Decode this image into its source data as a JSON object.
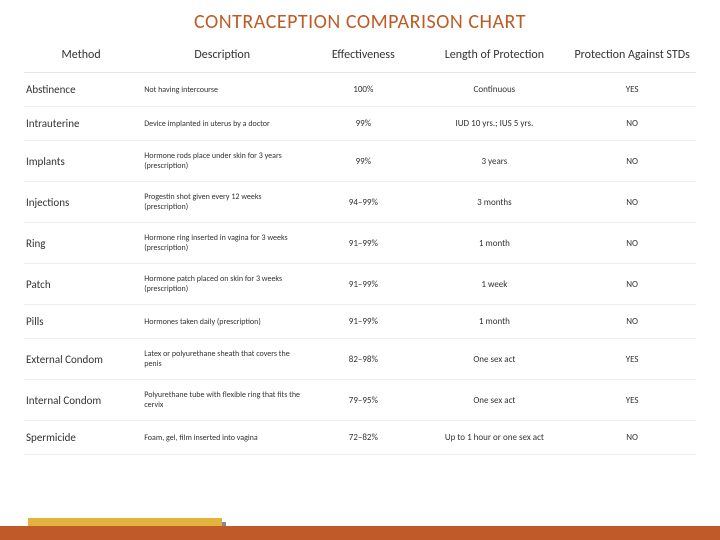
{
  "title": "CONTRACEPTION COMPARISON CHART",
  "colors": {
    "title": "#bd5b27",
    "footer_bar": "#c05a28",
    "footer_tab": "#e2b33d",
    "row_border": "#eeeeee",
    "text": "#333333",
    "background": "#ffffff"
  },
  "fonts": {
    "title_size_pt": 20,
    "header_size_pt": 12,
    "method_size_pt": 11,
    "cell_size_pt": 9,
    "desc_size_pt": 8
  },
  "columns": [
    {
      "label": "Method",
      "align": "left",
      "width_pct": 17
    },
    {
      "label": "Description",
      "align": "left",
      "width_pct": 25
    },
    {
      "label": "Effectiveness",
      "align": "center",
      "width_pct": 17
    },
    {
      "label": "Length of Protection",
      "align": "center",
      "width_pct": 22
    },
    {
      "label": "Protection Against STDs",
      "align": "center",
      "width_pct": 19
    }
  ],
  "rows": [
    {
      "method": "Abstinence",
      "desc": "Not having intercourse",
      "eff": "100%",
      "length": "Continuous",
      "std": "YES"
    },
    {
      "method": "Intrauterine",
      "desc": "Device implanted in uterus by a doctor",
      "eff": "99%",
      "length": "IUD 10 yrs.; IUS 5 yrs.",
      "std": "NO"
    },
    {
      "method": "Implants",
      "desc": "Hormone rods place under skin for 3 years (prescription)",
      "eff": "99%",
      "length": "3 years",
      "std": "NO"
    },
    {
      "method": "Injections",
      "desc": "Progestin shot given every 12 weeks (prescription)",
      "eff": "94–99%",
      "length": "3 months",
      "std": "NO"
    },
    {
      "method": "Ring",
      "desc": "Hormone ring inserted in vagina for 3 weeks (prescription)",
      "eff": "91–99%",
      "length": "1 month",
      "std": "NO"
    },
    {
      "method": "Patch",
      "desc": "Hormone patch placed on skin for 3 weeks (prescription)",
      "eff": "91–99%",
      "length": "1 week",
      "std": "NO"
    },
    {
      "method": "Pills",
      "desc": "Hormones taken daily (prescription)",
      "eff": "91–99%",
      "length": "1 month",
      "std": "NO"
    },
    {
      "method": "External Condom",
      "desc": "Latex or polyurethane sheath that covers the penis",
      "eff": "82–98%",
      "length": "One sex act",
      "std": "YES"
    },
    {
      "method": "Internal Condom",
      "desc": "Polyurethane tube with flexible ring that fits the cervix",
      "eff": "79–95%",
      "length": "One sex act",
      "std": "YES"
    },
    {
      "method": "Spermicide",
      "desc": "Foam, gel, film inserted into vagina",
      "eff": "72–82%",
      "length": "Up to 1 hour or one sex act",
      "std": "NO"
    }
  ]
}
